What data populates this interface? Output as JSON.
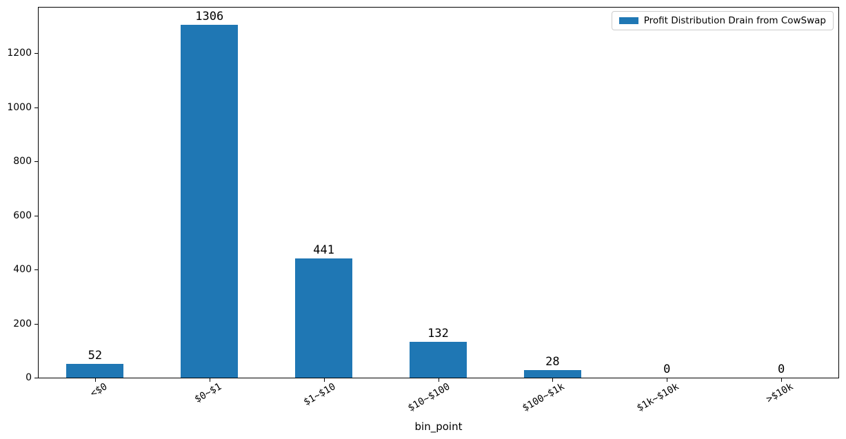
{
  "chart_data": {
    "type": "bar",
    "title": "",
    "xlabel": "bin_point",
    "ylabel": "",
    "categories": [
      "<$0",
      "$0~$1",
      "$1~$10",
      "$10~$100",
      "$100~$1k",
      "$1k~$10k",
      ">$10k"
    ],
    "values": [
      52,
      1306,
      441,
      132,
      28,
      0,
      0
    ],
    "value_labels": [
      "52",
      "1306",
      "441",
      "132",
      "28",
      "0",
      "0"
    ],
    "legend_label": "Profit Distribution Drain from CowSwap",
    "legend_position": "upper right",
    "bar_color": "#1f77b4",
    "ylim": [
      0,
      1371
    ],
    "yticks": [
      0,
      200,
      400,
      600,
      800,
      1000,
      1200
    ],
    "grid": false,
    "bar_width_fraction": 0.5,
    "xtick_rotation_deg": 30
  }
}
